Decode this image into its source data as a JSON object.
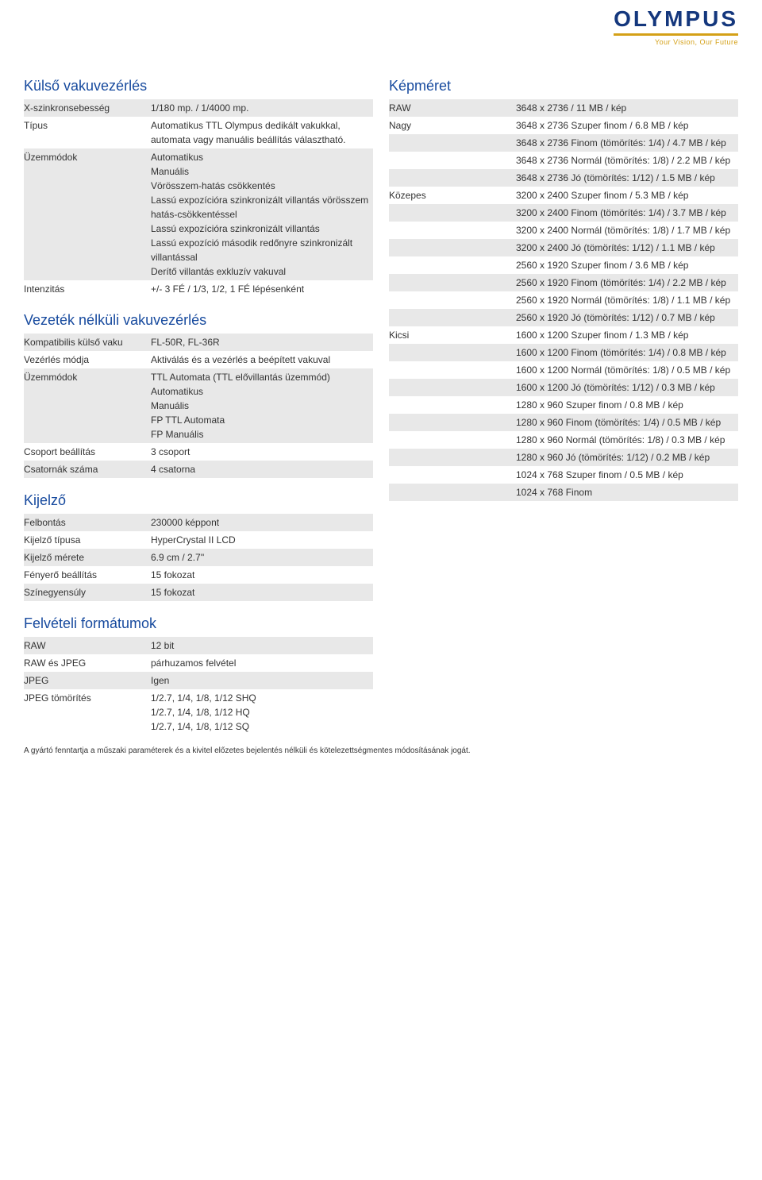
{
  "logo": {
    "brand": "OLYMPUS",
    "tagline": "Your Vision, Our Future"
  },
  "left": {
    "s1": {
      "title": "Külső vakuvezérlés",
      "rows": [
        {
          "label": "X-szinkronsebesség",
          "value": "1/180 mp. / 1/4000 mp.",
          "alt": true
        },
        {
          "label": "Típus",
          "value": "Automatikus TTL Olympus dedikált vakukkal, automata vagy manuális beállítás választható.",
          "alt": false
        },
        {
          "label": "Üzemmódok",
          "value": "Automatikus\nManuális\nVörösszem-hatás csökkentés\nLassú expozícióra szinkronizált villantás vörösszem hatás-csökkentéssel\nLassú expozícióra szinkronizált villantás\nLassú expozíció második redőnyre szinkronizált villantással\nDerítő villantás exkluzív vakuval",
          "alt": true
        },
        {
          "label": "Intenzitás",
          "value": "+/- 3 FÉ / 1/3, 1/2, 1 FÉ lépésenként",
          "alt": false
        }
      ]
    },
    "s2": {
      "title": "Vezeték nélküli vakuvezérlés",
      "rows": [
        {
          "label": "Kompatibilis külső vaku",
          "value": "FL-50R, FL-36R",
          "alt": true
        },
        {
          "label": "Vezérlés módja",
          "value": "Aktiválás és a vezérlés a beépített vakuval",
          "alt": false
        },
        {
          "label": "Üzemmódok",
          "value": "TTL Automata (TTL elővillantás üzemmód)\nAutomatikus\nManuális\nFP TTL Automata\nFP Manuális",
          "alt": true
        },
        {
          "label": "Csoport beállítás",
          "value": "3 csoport",
          "alt": false
        },
        {
          "label": "Csatornák száma",
          "value": "4 csatorna",
          "alt": true
        }
      ]
    },
    "s3": {
      "title": "Kijelző",
      "rows": [
        {
          "label": "Felbontás",
          "value": "230000 képpont",
          "alt": true
        },
        {
          "label": "Kijelző típusa",
          "value": "HyperCrystal II LCD",
          "alt": false
        },
        {
          "label": "Kijelző mérete",
          "value": "6.9 cm / 2.7''",
          "alt": true
        },
        {
          "label": "Fényerő beállítás",
          "value": "15 fokozat",
          "alt": false
        },
        {
          "label": "Színegyensúly",
          "value": "15 fokozat",
          "alt": true
        }
      ]
    },
    "s4": {
      "title": "Felvételi formátumok",
      "rows": [
        {
          "label": "RAW",
          "value": "12 bit",
          "alt": true
        },
        {
          "label": "RAW és JPEG",
          "value": "párhuzamos felvétel",
          "alt": false
        },
        {
          "label": "JPEG",
          "value": "Igen",
          "alt": true
        },
        {
          "label": "JPEG tömörítés",
          "value": "1/2.7, 1/4, 1/8, 1/12 SHQ\n1/2.7, 1/4, 1/8, 1/12 HQ\n1/2.7, 1/4, 1/8, 1/12 SQ",
          "alt": false
        }
      ]
    }
  },
  "right": {
    "s1": {
      "title": "Képméret",
      "rows": [
        {
          "label": "RAW",
          "value": "3648 x 2736 / 11 MB / kép",
          "alt": true
        },
        {
          "label": "Nagy",
          "value": "3648 x 2736 Szuper finom / 6.8 MB / kép",
          "alt": false
        },
        {
          "label": "",
          "value": "3648 x 2736 Finom (tömörítés: 1/4) / 4.7 MB / kép",
          "alt": true
        },
        {
          "label": "",
          "value": "3648 x 2736 Normál (tömörítés: 1/8) / 2.2 MB / kép",
          "alt": false
        },
        {
          "label": "",
          "value": "3648 x 2736 Jó (tömörítés: 1/12) / 1.5 MB / kép",
          "alt": true
        },
        {
          "label": "Közepes",
          "value": "3200 x 2400 Szuper finom / 5.3 MB / kép",
          "alt": false
        },
        {
          "label": "",
          "value": "3200 x 2400 Finom (tömörítés: 1/4) / 3.7 MB / kép",
          "alt": true
        },
        {
          "label": "",
          "value": "3200 x 2400 Normál (tömörítés: 1/8) / 1.7 MB / kép",
          "alt": false
        },
        {
          "label": "",
          "value": "3200 x 2400 Jó (tömörítés: 1/12) / 1.1 MB / kép",
          "alt": true
        },
        {
          "label": "",
          "value": "2560 x 1920 Szuper finom / 3.6 MB / kép",
          "alt": false
        },
        {
          "label": "",
          "value": "2560 x 1920 Finom (tömörítés: 1/4) / 2.2 MB / kép",
          "alt": true
        },
        {
          "label": "",
          "value": "2560 x 1920 Normál (tömörítés: 1/8) / 1.1 MB / kép",
          "alt": false
        },
        {
          "label": "",
          "value": "2560 x 1920 Jó (tömörítés: 1/12) / 0.7 MB / kép",
          "alt": true
        },
        {
          "label": "Kicsi",
          "value": "1600 x 1200 Szuper finom / 1.3 MB / kép",
          "alt": false
        },
        {
          "label": "",
          "value": "1600 x 1200 Finom (tömörítés: 1/4) / 0.8 MB / kép",
          "alt": true
        },
        {
          "label": "",
          "value": "1600 x 1200 Normál (tömörítés: 1/8) / 0.5 MB / kép",
          "alt": false
        },
        {
          "label": "",
          "value": "1600 x 1200 Jó (tömörítés: 1/12) / 0.3 MB / kép",
          "alt": true
        },
        {
          "label": "",
          "value": "1280 x 960 Szuper finom / 0.8 MB / kép",
          "alt": false
        },
        {
          "label": "",
          "value": "1280 x 960 Finom (tömörítés: 1/4) / 0.5 MB / kép",
          "alt": true
        },
        {
          "label": "",
          "value": "1280 x 960 Normál (tömörítés: 1/8) / 0.3 MB / kép",
          "alt": false
        },
        {
          "label": "",
          "value": "1280 x 960 Jó (tömörítés: 1/12) / 0.2 MB / kép",
          "alt": true
        },
        {
          "label": "",
          "value": "1024 x 768 Szuper finom / 0.5 MB / kép",
          "alt": false
        },
        {
          "label": "",
          "value": "1024 x 768 Finom",
          "alt": true
        }
      ]
    }
  },
  "footer": "A gyártó fenntartja a műszaki paraméterek és a kivitel előzetes bejelentés nélküli és kötelezettségmentes módosításának jogát.",
  "colors": {
    "heading": "#174a9e",
    "brand": "#14377d",
    "accent": "#d4a017",
    "alt_row": "#e8e8e8",
    "text": "#333333"
  }
}
